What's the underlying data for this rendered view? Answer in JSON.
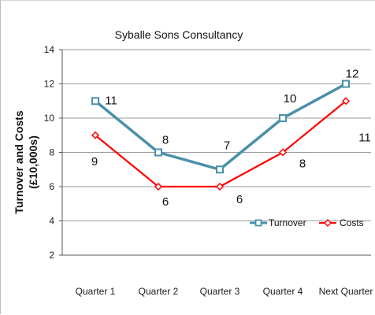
{
  "chart_data": {
    "type": "line",
    "title": "Syballe Sons Consultancy",
    "xlabel": "",
    "ylabel_lines": [
      "Turnover and Costs",
      "(£10,000s)"
    ],
    "categories": [
      "Quarter 1",
      "Quarter 2",
      "Quarter 3",
      "Quarter 4",
      "Next Quarter"
    ],
    "ylim": [
      2,
      14
    ],
    "yticks": [
      2,
      4,
      6,
      8,
      10,
      12,
      14
    ],
    "grid": true,
    "legend_position": "bottom-right",
    "series": [
      {
        "name": "Turnover",
        "values": [
          11,
          8,
          7,
          10,
          12
        ],
        "color": "#4a90a8",
        "marker": "square"
      },
      {
        "name": "Costs",
        "values": [
          9,
          6,
          6,
          8,
          11
        ],
        "color": "#ff0000",
        "marker": "diamond"
      }
    ]
  }
}
